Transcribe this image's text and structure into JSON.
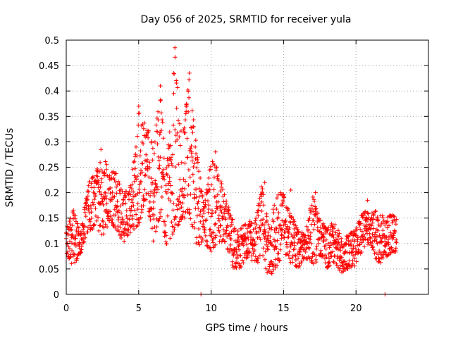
{
  "chart_data": {
    "type": "scatter",
    "title": "Day 056 of 2025, SRMTID for receiver yula",
    "xlabel": "GPS time / hours",
    "ylabel": "SRMTID / TECUs",
    "xlim": [
      0,
      25
    ],
    "ylim": [
      0,
      0.5
    ],
    "xticks": [
      0,
      5,
      10,
      15,
      20
    ],
    "xtick_labels": [
      "0",
      "5",
      "10",
      "15",
      "20"
    ],
    "yticks": [
      0,
      0.05,
      0.1,
      0.15,
      0.2,
      0.25,
      0.3,
      0.35,
      0.4,
      0.45,
      0.5
    ],
    "ytick_labels": [
      "0",
      "0.05",
      "0.1",
      "0.15",
      "0.2",
      "0.25",
      "0.3",
      "0.35",
      "0.4",
      "0.45",
      "0.5"
    ],
    "grid": true,
    "marker": "+",
    "color": "#ff0000",
    "series": [
      {
        "name": "SRMTID",
        "envelope": {
          "x": [
            0.0,
            0.5,
            1.0,
            1.5,
            2.0,
            2.5,
            3.0,
            3.5,
            4.0,
            4.5,
            5.0,
            5.5,
            6.0,
            6.5,
            7.0,
            7.5,
            8.0,
            8.5,
            9.0,
            9.5,
            10.0,
            10.5,
            11.0,
            11.5,
            12.0,
            12.5,
            13.0,
            13.5,
            14.0,
            14.5,
            15.0,
            15.5,
            16.0,
            16.5,
            17.0,
            17.5,
            18.0,
            18.5,
            19.0,
            19.5,
            20.0,
            20.5,
            21.0,
            21.5,
            22.0,
            22.5,
            22.8
          ],
          "low": [
            0.08,
            0.05,
            0.08,
            0.12,
            0.13,
            0.11,
            0.14,
            0.12,
            0.1,
            0.12,
            0.13,
            0.18,
            0.1,
            0.15,
            0.08,
            0.12,
            0.14,
            0.15,
            0.09,
            0.1,
            0.08,
            0.1,
            0.1,
            0.05,
            0.05,
            0.07,
            0.06,
            0.06,
            0.03,
            0.05,
            0.08,
            0.06,
            0.05,
            0.07,
            0.05,
            0.07,
            0.05,
            0.06,
            0.04,
            0.05,
            0.05,
            0.09,
            0.1,
            0.05,
            0.07,
            0.08,
            0.08
          ],
          "high": [
            0.13,
            0.17,
            0.12,
            0.22,
            0.24,
            0.28,
            0.25,
            0.24,
            0.2,
            0.22,
            0.37,
            0.34,
            0.3,
            0.4,
            0.28,
            0.48,
            0.3,
            0.44,
            0.3,
            0.17,
            0.27,
            0.25,
            0.19,
            0.15,
            0.13,
            0.15,
            0.14,
            0.22,
            0.14,
            0.2,
            0.2,
            0.16,
            0.13,
            0.12,
            0.2,
            0.15,
            0.13,
            0.15,
            0.11,
            0.12,
            0.13,
            0.17,
            0.16,
            0.17,
            0.15,
            0.16,
            0.15
          ]
        },
        "outliers": [
          {
            "x": 9.3,
            "y": 0.0
          },
          {
            "x": 22.0,
            "y": 0.0
          },
          {
            "x": 7.5,
            "y": 0.485
          },
          {
            "x": 8.5,
            "y": 0.435
          },
          {
            "x": 5.0,
            "y": 0.37
          },
          {
            "x": 6.5,
            "y": 0.41
          },
          {
            "x": 10.3,
            "y": 0.28
          },
          {
            "x": 2.4,
            "y": 0.285
          },
          {
            "x": 13.7,
            "y": 0.22
          },
          {
            "x": 14.8,
            "y": 0.2
          },
          {
            "x": 15.5,
            "y": 0.205
          },
          {
            "x": 17.2,
            "y": 0.2
          },
          {
            "x": 20.8,
            "y": 0.185
          }
        ]
      }
    ]
  }
}
